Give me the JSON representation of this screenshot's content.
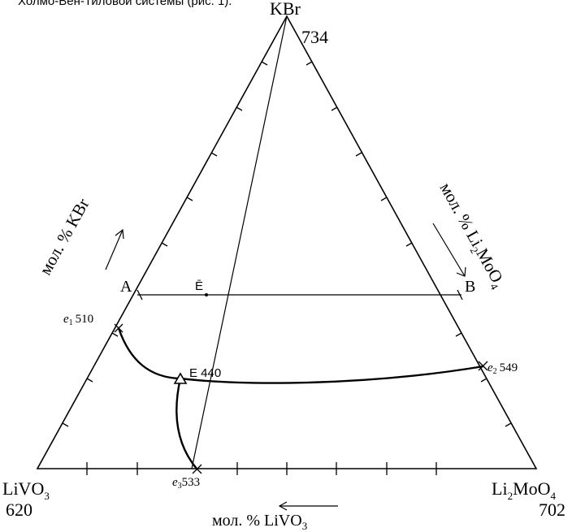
{
  "caption_line": "Холмо-Вен-Тиловой системы (рис. 1).",
  "vertices": {
    "top": {
      "name": "KBr",
      "temp": "734"
    },
    "left": {
      "name_main": "LiVO",
      "name_sub": "3",
      "temp": "620"
    },
    "right": {
      "name_pre": "Li",
      "name_sub1": "2",
      "name_mid": "MoO",
      "name_sub2": "4",
      "temp": "702"
    }
  },
  "axis_labels": {
    "left": {
      "text": "мол. % KBr"
    },
    "right": {
      "pre": "мол. % Li",
      "sub1": "2",
      "mid": "MoO",
      "sub2": "4"
    },
    "bottom": {
      "pre": "мол. % LiVO",
      "sub": "3"
    }
  },
  "points": {
    "A": "A",
    "B": "B",
    "E_bar": "Ē",
    "E": "E 440",
    "e1": {
      "letter": "e",
      "sub": "1",
      "temp": "510"
    },
    "e2": {
      "letter": "e",
      "sub": "2",
      "temp": "549"
    },
    "e3": {
      "letter": "e",
      "sub": "3",
      "temp": "533"
    }
  }
}
